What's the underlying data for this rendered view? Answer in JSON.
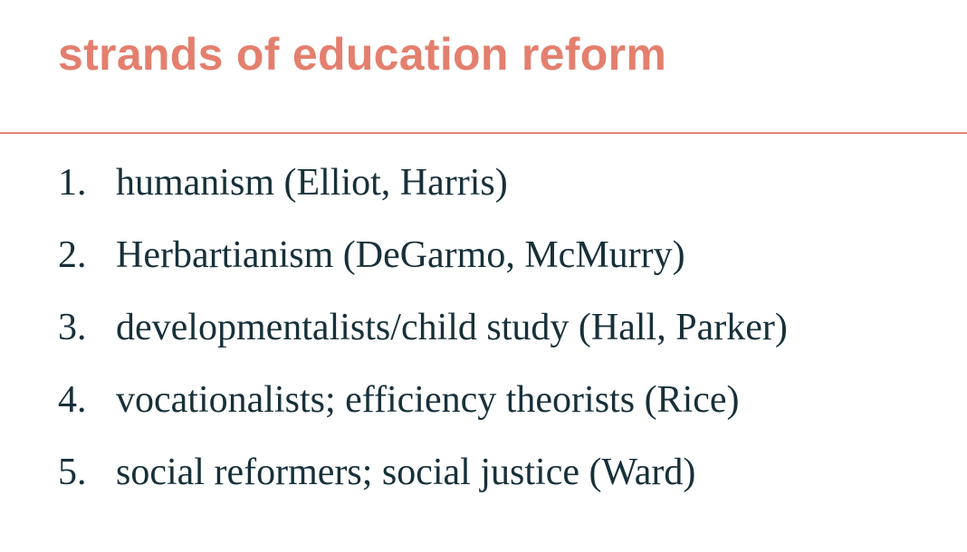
{
  "slide": {
    "title": "strands of education reform",
    "items": [
      {
        "number": "1.",
        "text": "humanism (Elliot, Harris)"
      },
      {
        "number": "2.",
        "text": "Herbartianism (DeGarmo, McMurry)"
      },
      {
        "number": "3.",
        "text": "developmentalists/child study (Hall, Parker)"
      },
      {
        "number": "4.",
        "text": "vocationalists; efficiency theorists (Rice)"
      },
      {
        "number": "5.",
        "text": "social reformers; social justice (Ward)"
      }
    ]
  },
  "colors": {
    "title": "#e47f6e",
    "divider": "#e0877a",
    "body_text": "#17303a",
    "background": "#ffffff"
  }
}
